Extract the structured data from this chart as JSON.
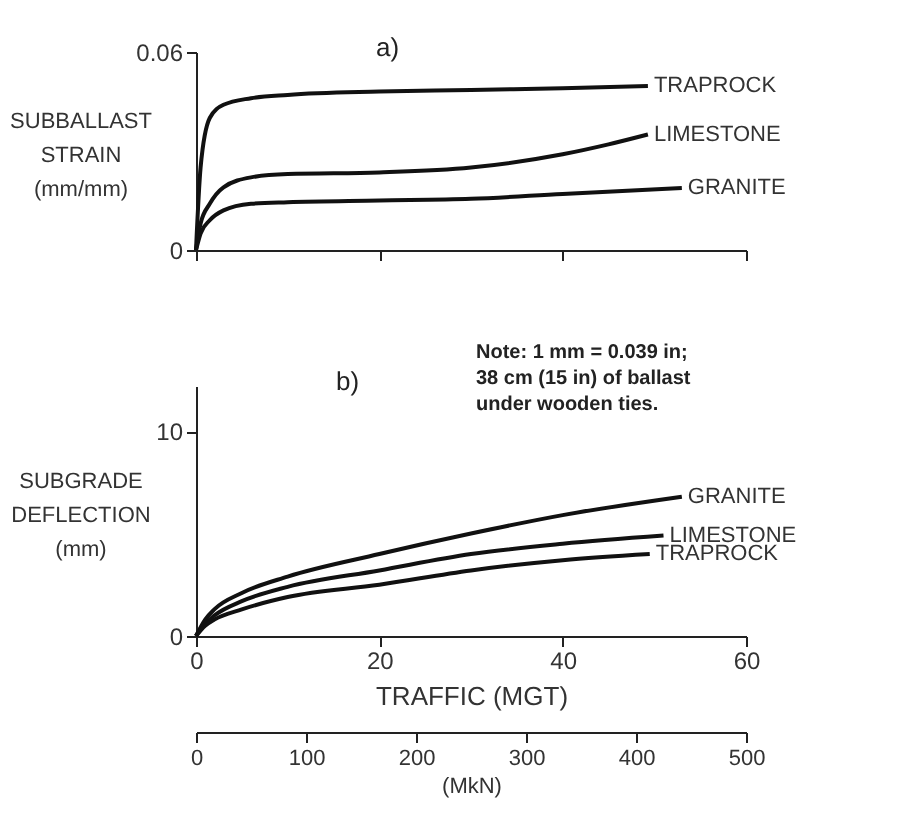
{
  "chart_data": [
    {
      "type": "line",
      "ylabel": "SUBBALLAST\nSTRAIN\n(mm/mm)",
      "xlim": [
        0,
        60
      ],
      "xticks": [
        {
          "value": 0,
          "label": null
        },
        {
          "value": 20,
          "label": null
        },
        {
          "value": 40,
          "label": null
        },
        {
          "value": 60,
          "label": null
        }
      ],
      "ylim": [
        0,
        0.06
      ],
      "yticks": [
        0,
        0.06
      ],
      "tick_labels": "y",
      "grid": false,
      "line_style": "solid",
      "annotations": [
        "a)"
      ],
      "series": [
        {
          "name": "TRAPROCK",
          "color": "#111111",
          "x": [
            0,
            0.5,
            1.5,
            3,
            6,
            10,
            20,
            30,
            40,
            49.3
          ],
          "values": [
            0,
            0.025,
            0.04,
            0.044,
            0.046,
            0.047,
            0.048,
            0.0485,
            0.049,
            0.0497
          ]
        },
        {
          "name": "LIMESTONE",
          "color": "#111111",
          "x": [
            0,
            0.5,
            1.5,
            3,
            6,
            10,
            20,
            30,
            40,
            45,
            49.3
          ],
          "values": [
            0,
            0.008,
            0.014,
            0.019,
            0.022,
            0.023,
            0.0235,
            0.025,
            0.029,
            0.032,
            0.035
          ]
        },
        {
          "name": "GRANITE",
          "color": "#111111",
          "x": [
            0,
            0.5,
            1.5,
            3,
            6,
            10,
            20,
            30,
            40,
            53
          ],
          "values": [
            0,
            0.005,
            0.009,
            0.012,
            0.014,
            0.0145,
            0.015,
            0.0155,
            0.017,
            0.0188
          ]
        }
      ]
    },
    {
      "type": "line",
      "ylabel": "SUBGRADE\nDEFLECTION\n(mm)",
      "xlabel": "TRAFFIC   (MGT)",
      "xlim": [
        0,
        60
      ],
      "xticks": [
        0,
        20,
        40,
        60
      ],
      "ylim": [
        0,
        12.2
      ],
      "yticks": [
        0,
        10
      ],
      "x2lim": [
        0,
        500
      ],
      "x2ticks": [
        0,
        100,
        200,
        300,
        400,
        500
      ],
      "x2label": "(MkN)",
      "grid": false,
      "line_style": "solid",
      "annotations": [
        "b)",
        "Note:  1 mm = 0.039 in;\n38 cm (15 in) of ballast\nunder wooden ties."
      ],
      "series": [
        {
          "name": "GRANITE",
          "color": "#111111",
          "x": [
            0,
            1,
            2,
            5,
            10,
            20,
            30,
            40,
            53
          ],
          "values": [
            0,
            0.8,
            1.3,
            2.1,
            2.9,
            4.0,
            5.0,
            5.9,
            6.8
          ]
        },
        {
          "name": "LIMESTONE",
          "color": "#111111",
          "x": [
            0,
            1,
            2,
            5,
            10,
            20,
            30,
            40,
            51
          ],
          "values": [
            0,
            0.6,
            1.0,
            1.7,
            2.4,
            3.2,
            4.0,
            4.5,
            4.9
          ]
        },
        {
          "name": "TRAPROCK",
          "color": "#111111",
          "x": [
            0,
            1,
            2,
            5,
            10,
            20,
            30,
            40,
            49.5
          ],
          "values": [
            0,
            0.5,
            0.8,
            1.3,
            1.9,
            2.5,
            3.2,
            3.7,
            4.0
          ]
        }
      ]
    }
  ]
}
